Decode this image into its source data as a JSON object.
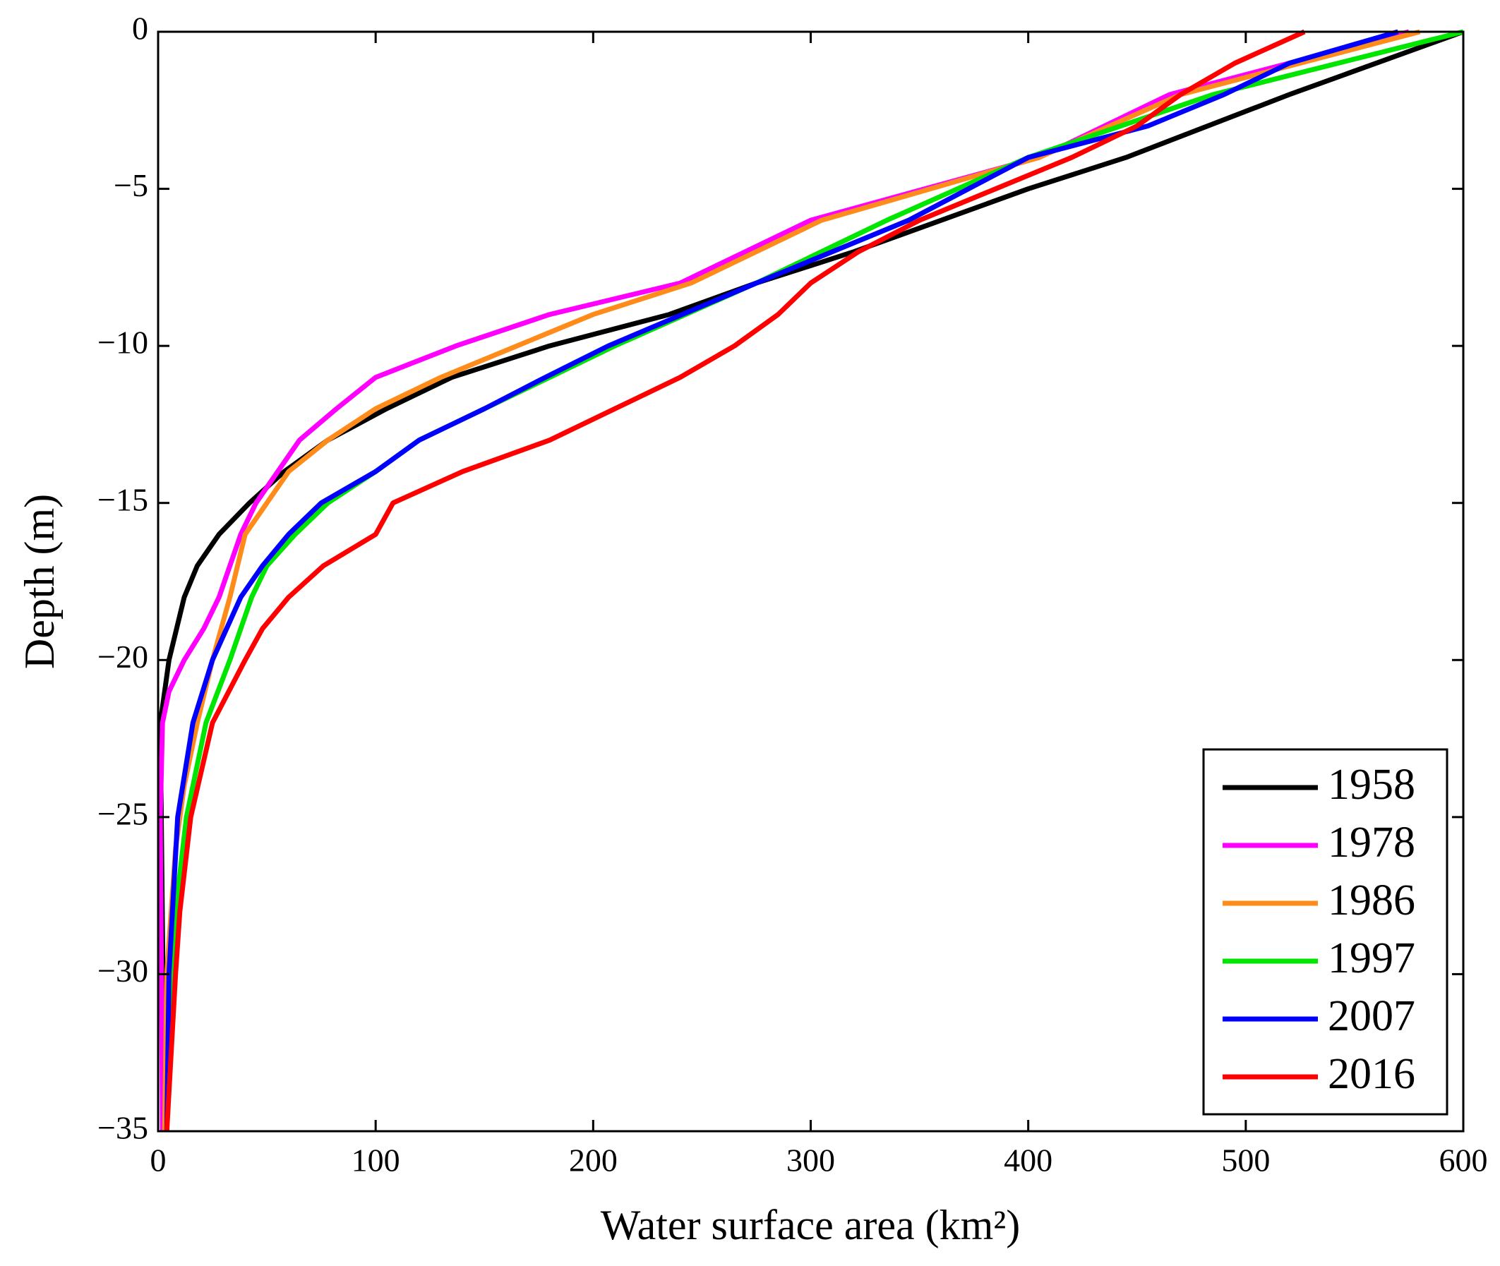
{
  "chart_data": {
    "type": "line",
    "x_label": "Water surface area (km²)",
    "y_label": "Depth (m)",
    "xlim": [
      0,
      600
    ],
    "ylim": [
      -35,
      0
    ],
    "xticks": [
      0,
      100,
      200,
      300,
      400,
      500,
      600
    ],
    "yticks": [
      0,
      {
        "value": -5,
        "label": "−5"
      },
      {
        "value": -10,
        "label": "−10"
      },
      {
        "value": -15,
        "label": "−15"
      },
      {
        "value": -20,
        "label": "−20"
      },
      {
        "value": -25,
        "label": "−25"
      },
      {
        "value": -30,
        "label": "−30"
      },
      {
        "value": -35,
        "label": "−35"
      }
    ],
    "legend": "lower right",
    "series": [
      {
        "name": "1958",
        "color": "#000000",
        "x": [
          600,
          520,
          445,
          400,
          320,
          275,
          235,
          180,
          135,
          105,
          78,
          58,
          42,
          28,
          18,
          12,
          5,
          1,
          3
        ],
        "values": [
          0,
          -2,
          -4,
          -5,
          -7,
          -8,
          -9,
          -10,
          -11,
          -12,
          -13,
          -14,
          -15,
          -16,
          -17,
          -18,
          -20,
          -22,
          -35
        ]
      },
      {
        "name": "1978",
        "color": "#ff00ff",
        "x": [
          575,
          465,
          405,
          300,
          240,
          180,
          137,
          100,
          82,
          65,
          55,
          45,
          38,
          33,
          28,
          21,
          12,
          5,
          2,
          1,
          2
        ],
        "values": [
          0,
          -2,
          -4,
          -6,
          -8,
          -9,
          -10,
          -11,
          -12,
          -13,
          -14,
          -15,
          -16,
          -17,
          -18,
          -19,
          -20,
          -21,
          -22,
          -25,
          -35
        ]
      },
      {
        "name": "1986",
        "color": "#ff8c1a",
        "x": [
          580,
          470,
          405,
          305,
          245,
          200,
          165,
          130,
          100,
          78,
          60,
          50,
          40,
          33,
          25,
          18,
          12,
          8,
          4,
          3
        ],
        "values": [
          0,
          -2,
          -4,
          -6,
          -8,
          -9,
          -10,
          -11,
          -12,
          -13,
          -14,
          -15,
          -16,
          -18,
          -20,
          -22,
          -24,
          -26,
          -30,
          -35
        ]
      },
      {
        "name": "1997",
        "color": "#00e600",
        "x": [
          600,
          485,
          400,
          335,
          275,
          210,
          180,
          150,
          120,
          100,
          78,
          63,
          50,
          43,
          33,
          22,
          13,
          8,
          6,
          4
        ],
        "values": [
          0,
          -2,
          -4,
          -6,
          -8,
          -10,
          -11,
          -12,
          -13,
          -14,
          -15,
          -16,
          -17,
          -18,
          -20,
          -22,
          -25,
          -28,
          -30,
          -35
        ]
      },
      {
        "name": "2007",
        "color": "#0000ff",
        "x": [
          570,
          520,
          490,
          455,
          400,
          345,
          275,
          207,
          178,
          150,
          120,
          100,
          75,
          60,
          48,
          38,
          25,
          16,
          9,
          5,
          4
        ],
        "values": [
          0,
          -1,
          -2,
          -3,
          -4,
          -6,
          -8,
          -10,
          -11,
          -12,
          -13,
          -14,
          -15,
          -16,
          -17,
          -18,
          -20,
          -22,
          -25,
          -30,
          -35
        ]
      },
      {
        "name": "2016",
        "color": "#ff0000",
        "x": [
          527,
          495,
          470,
          450,
          420,
          385,
          350,
          322,
          300,
          285,
          265,
          240,
          210,
          180,
          140,
          108,
          100,
          76,
          60,
          48,
          40,
          25,
          15,
          10,
          8,
          4
        ],
        "values": [
          0,
          -1,
          -2,
          -3,
          -4,
          -5,
          -6,
          -7,
          -8,
          -9,
          -10,
          -11,
          -12,
          -13,
          -14,
          -15,
          -16,
          -17,
          -18,
          -19,
          -20,
          -22,
          -25,
          -28,
          -30,
          -35
        ]
      }
    ]
  }
}
